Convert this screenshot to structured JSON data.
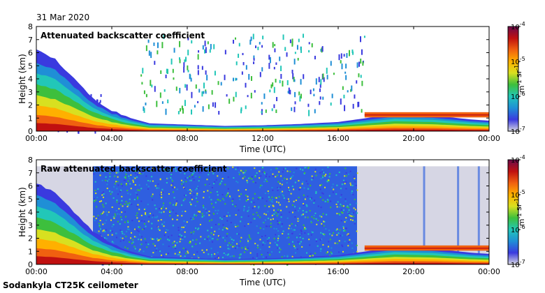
{
  "header": {
    "date": "31 Mar 2020"
  },
  "footer": {
    "instrument": "Sodankyla CT25K ceilometer"
  },
  "colormap": {
    "stops": [
      "#d8d8e0",
      "#3a3adf",
      "#1f8fd6",
      "#22c7b8",
      "#3dbf3d",
      "#d8e020",
      "#ffb000",
      "#f06010",
      "#c01010",
      "#6a0a4a"
    ]
  },
  "chart_data": [
    {
      "type": "heatmap",
      "title": "Attenuated backscatter coefficient",
      "xlabel": "Time (UTC)",
      "ylabel": "Height (km)",
      "x_ticks": [
        "00:00",
        "04:00",
        "08:00",
        "12:00",
        "16:00",
        "20:00",
        "00:00"
      ],
      "xlim_hours": [
        0,
        24
      ],
      "ylim": [
        0,
        8
      ],
      "y_ticks": [
        0,
        1,
        2,
        3,
        4,
        5,
        6,
        7,
        8
      ],
      "colorbar": {
        "label": "m-1 sr-1",
        "scale": "log",
        "range": [
          1e-07,
          0.0001
        ],
        "ticks": [
          "10-4",
          "10-5",
          "10-6",
          "10-7"
        ]
      },
      "aerosol_top_km": [
        [
          0,
          6.2
        ],
        [
          1,
          5.5
        ],
        [
          2,
          4.0
        ],
        [
          3,
          2.5
        ],
        [
          4,
          1.6
        ],
        [
          5,
          1.0
        ],
        [
          6,
          0.6
        ],
        [
          8,
          0.5
        ],
        [
          10,
          0.4
        ],
        [
          12,
          0.45
        ],
        [
          14,
          0.55
        ],
        [
          16,
          0.7
        ],
        [
          17.5,
          1.0
        ],
        [
          19,
          1.3
        ],
        [
          21,
          1.2
        ],
        [
          23,
          0.9
        ],
        [
          24,
          0.8
        ]
      ],
      "cloud_layers": [
        {
          "time_range": [
            17.4,
            24
          ],
          "height_km": 1.2
        }
      ]
    },
    {
      "type": "heatmap",
      "title": "Raw attenuated backscatter coefficient",
      "xlabel": "Time (UTC)",
      "ylabel": "Height (km)",
      "x_ticks": [
        "00:00",
        "04:00",
        "08:00",
        "12:00",
        "16:00",
        "20:00",
        "00:00"
      ],
      "xlim_hours": [
        0,
        24
      ],
      "ylim": [
        0,
        8
      ],
      "y_ticks": [
        0,
        1,
        2,
        3,
        4,
        5,
        6,
        7,
        8
      ],
      "colorbar": {
        "label": "m-1 sr-1",
        "scale": "log",
        "range": [
          1e-07,
          0.0001
        ],
        "ticks": [
          "10-4",
          "10-5",
          "10-6",
          "10-7"
        ]
      },
      "noise_region_hours": [
        3,
        17
      ],
      "aerosol_top_km": [
        [
          0,
          6.2
        ],
        [
          1,
          5.5
        ],
        [
          2,
          4.0
        ],
        [
          3,
          2.5
        ],
        [
          4,
          1.6
        ],
        [
          5,
          1.0
        ],
        [
          6,
          0.6
        ],
        [
          8,
          0.5
        ],
        [
          10,
          0.4
        ],
        [
          12,
          0.45
        ],
        [
          14,
          0.55
        ],
        [
          16,
          0.7
        ],
        [
          17.5,
          1.0
        ],
        [
          19,
          1.3
        ],
        [
          21,
          1.2
        ],
        [
          23,
          0.9
        ],
        [
          24,
          0.8
        ]
      ],
      "cloud_layers": [
        {
          "time_range": [
            17.4,
            24
          ],
          "height_km": 1.2
        }
      ]
    }
  ]
}
